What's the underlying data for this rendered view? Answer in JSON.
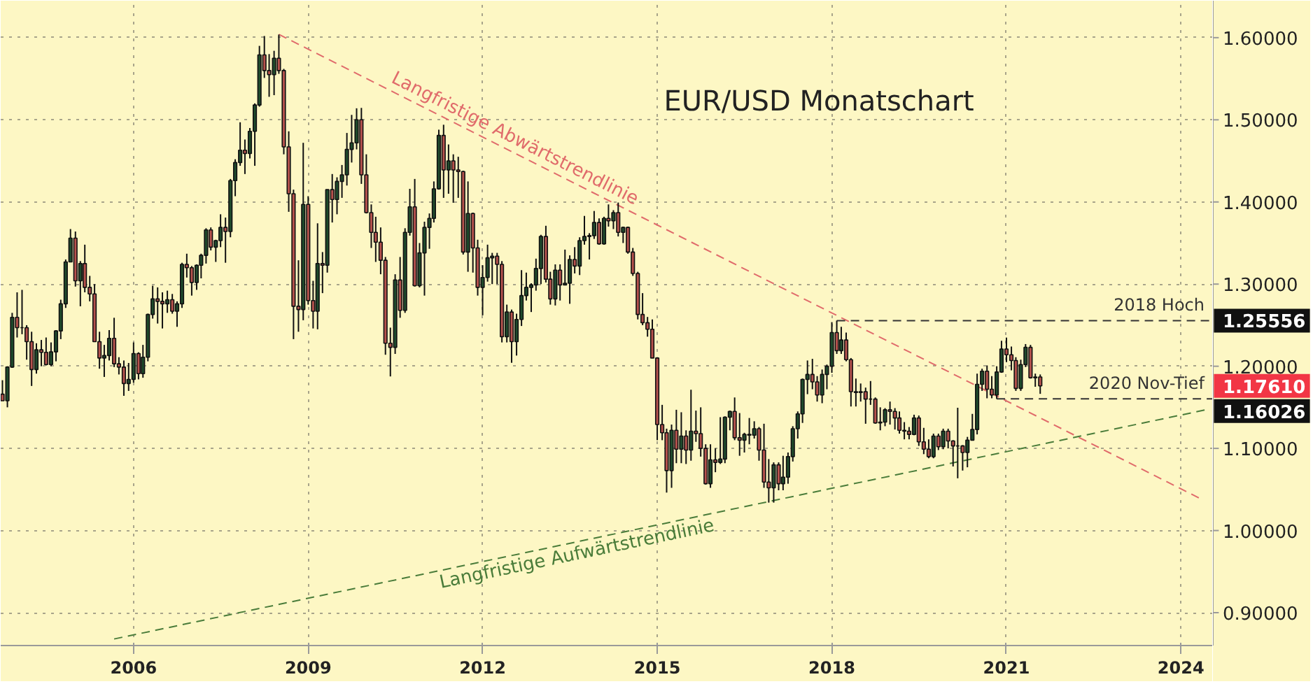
{
  "chart_data": {
    "type": "candlestick",
    "title": "EUR/USD Monatschart",
    "x": [
      "2003-10",
      "2003-11",
      "2003-12",
      "2004-01",
      "2004-02",
      "2004-03",
      "2004-04",
      "2004-05",
      "2004-06",
      "2004-07",
      "2004-08",
      "2004-09",
      "2004-10",
      "2004-11",
      "2004-12",
      "2005-01",
      "2005-02",
      "2005-03",
      "2005-04",
      "2005-05",
      "2005-06",
      "2005-07",
      "2005-08",
      "2005-09",
      "2005-10",
      "2005-11",
      "2005-12",
      "2006-01",
      "2006-02",
      "2006-03",
      "2006-04",
      "2006-05",
      "2006-06",
      "2006-07",
      "2006-08",
      "2006-09",
      "2006-10",
      "2006-11",
      "2006-12",
      "2007-01",
      "2007-02",
      "2007-03",
      "2007-04",
      "2007-05",
      "2007-06",
      "2007-07",
      "2007-08",
      "2007-09",
      "2007-10",
      "2007-11",
      "2007-12",
      "2008-01",
      "2008-02",
      "2008-03",
      "2008-04",
      "2008-05",
      "2008-06",
      "2008-07",
      "2008-08",
      "2008-09",
      "2008-10",
      "2008-11",
      "2008-12",
      "2009-01",
      "2009-02",
      "2009-03",
      "2009-04",
      "2009-05",
      "2009-06",
      "2009-07",
      "2009-08",
      "2009-09",
      "2009-10",
      "2009-11",
      "2009-12",
      "2010-01",
      "2010-02",
      "2010-03",
      "2010-04",
      "2010-05",
      "2010-06",
      "2010-07",
      "2010-08",
      "2010-09",
      "2010-10",
      "2010-11",
      "2010-12",
      "2011-01",
      "2011-02",
      "2011-03",
      "2011-04",
      "2011-05",
      "2011-06",
      "2011-07",
      "2011-08",
      "2011-09",
      "2011-10",
      "2011-11",
      "2011-12",
      "2012-01",
      "2012-02",
      "2012-03",
      "2012-04",
      "2012-05",
      "2012-06",
      "2012-07",
      "2012-08",
      "2012-09",
      "2012-10",
      "2012-11",
      "2012-12",
      "2013-01",
      "2013-02",
      "2013-03",
      "2013-04",
      "2013-05",
      "2013-06",
      "2013-07",
      "2013-08",
      "2013-09",
      "2013-10",
      "2013-11",
      "2013-12",
      "2014-01",
      "2014-02",
      "2014-03",
      "2014-04",
      "2014-05",
      "2014-06",
      "2014-07",
      "2014-08",
      "2014-09",
      "2014-10",
      "2014-11",
      "2014-12",
      "2015-01",
      "2015-02",
      "2015-03",
      "2015-04",
      "2015-05",
      "2015-06",
      "2015-07",
      "2015-08",
      "2015-09",
      "2015-10",
      "2015-11",
      "2015-12",
      "2016-01",
      "2016-02",
      "2016-03",
      "2016-04",
      "2016-05",
      "2016-06",
      "2016-07",
      "2016-08",
      "2016-09",
      "2016-10",
      "2016-11",
      "2016-12",
      "2017-01",
      "2017-02",
      "2017-03",
      "2017-04",
      "2017-05",
      "2017-06",
      "2017-07",
      "2017-08",
      "2017-09",
      "2017-10",
      "2017-11",
      "2017-12",
      "2018-01",
      "2018-02",
      "2018-03",
      "2018-04",
      "2018-05",
      "2018-06",
      "2018-07",
      "2018-08",
      "2018-09",
      "2018-10",
      "2018-11",
      "2018-12",
      "2019-01",
      "2019-02",
      "2019-03",
      "2019-04",
      "2019-05",
      "2019-06",
      "2019-07",
      "2019-08",
      "2019-09",
      "2019-10",
      "2019-11",
      "2019-12",
      "2020-01",
      "2020-02",
      "2020-03",
      "2020-04",
      "2020-05",
      "2020-06",
      "2020-07",
      "2020-08",
      "2020-09",
      "2020-10",
      "2020-11",
      "2020-12",
      "2021-01",
      "2021-02",
      "2021-03",
      "2021-04",
      "2021-05",
      "2021-06",
      "2021-07",
      "2021-08"
    ],
    "ohlc": [
      [
        1.166,
        1.183,
        1.158,
        1.158
      ],
      [
        1.158,
        1.2,
        1.15,
        1.199
      ],
      [
        1.199,
        1.265,
        1.198,
        1.2595
      ],
      [
        1.2595,
        1.29,
        1.235,
        1.247
      ],
      [
        1.247,
        1.293,
        1.239,
        1.247
      ],
      [
        1.247,
        1.25,
        1.208,
        1.23
      ],
      [
        1.23,
        1.242,
        1.176,
        1.196
      ],
      [
        1.196,
        1.228,
        1.191,
        1.22
      ],
      [
        1.22,
        1.232,
        1.2,
        1.217
      ],
      [
        1.217,
        1.235,
        1.201,
        1.202
      ],
      [
        1.202,
        1.229,
        1.2,
        1.2175
      ],
      [
        1.2175,
        1.244,
        1.206,
        1.243
      ],
      [
        1.243,
        1.281,
        1.233,
        1.276
      ],
      [
        1.276,
        1.33,
        1.271,
        1.327
      ],
      [
        1.327,
        1.367,
        1.327,
        1.356
      ],
      [
        1.356,
        1.364,
        1.297,
        1.304
      ],
      [
        1.304,
        1.328,
        1.273,
        1.325
      ],
      [
        1.325,
        1.348,
        1.29,
        1.296
      ],
      [
        1.296,
        1.31,
        1.279,
        1.288
      ],
      [
        1.288,
        1.3,
        1.23,
        1.23
      ],
      [
        1.23,
        1.242,
        1.197,
        1.21
      ],
      [
        1.21,
        1.226,
        1.187,
        1.213
      ],
      [
        1.213,
        1.244,
        1.207,
        1.234
      ],
      [
        1.234,
        1.259,
        1.199,
        1.203
      ],
      [
        1.203,
        1.211,
        1.19,
        1.199
      ],
      [
        1.199,
        1.207,
        1.164,
        1.179
      ],
      [
        1.179,
        1.204,
        1.17,
        1.184
      ],
      [
        1.184,
        1.229,
        1.18,
        1.2155
      ],
      [
        1.2155,
        1.217,
        1.184,
        1.191
      ],
      [
        1.191,
        1.226,
        1.186,
        1.211
      ],
      [
        1.211,
        1.264,
        1.206,
        1.263
      ],
      [
        1.263,
        1.298,
        1.258,
        1.282
      ],
      [
        1.282,
        1.296,
        1.252,
        1.279
      ],
      [
        1.279,
        1.29,
        1.246,
        1.276
      ],
      [
        1.276,
        1.292,
        1.265,
        1.281
      ],
      [
        1.281,
        1.288,
        1.264,
        1.267
      ],
      [
        1.267,
        1.279,
        1.248,
        1.276
      ],
      [
        1.276,
        1.326,
        1.271,
        1.324
      ],
      [
        1.324,
        1.337,
        1.308,
        1.32
      ],
      [
        1.32,
        1.322,
        1.286,
        1.302
      ],
      [
        1.302,
        1.324,
        1.293,
        1.323
      ],
      [
        1.323,
        1.337,
        1.307,
        1.335
      ],
      [
        1.335,
        1.368,
        1.325,
        1.366
      ],
      [
        1.366,
        1.369,
        1.341,
        1.345
      ],
      [
        1.345,
        1.354,
        1.327,
        1.353
      ],
      [
        1.353,
        1.385,
        1.345,
        1.369
      ],
      [
        1.369,
        1.381,
        1.326,
        1.364
      ],
      [
        1.364,
        1.428,
        1.357,
        1.426
      ],
      [
        1.426,
        1.452,
        1.407,
        1.448
      ],
      [
        1.448,
        1.497,
        1.444,
        1.463
      ],
      [
        1.463,
        1.476,
        1.434,
        1.459
      ],
      [
        1.459,
        1.49,
        1.453,
        1.486
      ],
      [
        1.486,
        1.52,
        1.444,
        1.518
      ],
      [
        1.518,
        1.59,
        1.516,
        1.579
      ],
      [
        1.579,
        1.602,
        1.551,
        1.56
      ],
      [
        1.56,
        1.58,
        1.528,
        1.555
      ],
      [
        1.555,
        1.584,
        1.53,
        1.575
      ],
      [
        1.575,
        1.6038,
        1.556,
        1.56
      ],
      [
        1.56,
        1.562,
        1.458,
        1.467
      ],
      [
        1.467,
        1.486,
        1.388,
        1.41
      ],
      [
        1.41,
        1.415,
        1.233,
        1.273
      ],
      [
        1.273,
        1.329,
        1.242,
        1.269
      ],
      [
        1.269,
        1.472,
        1.256,
        1.397
      ],
      [
        1.397,
        1.407,
        1.275,
        1.28
      ],
      [
        1.28,
        1.304,
        1.246,
        1.267
      ],
      [
        1.267,
        1.374,
        1.245,
        1.325
      ],
      [
        1.325,
        1.339,
        1.289,
        1.323
      ],
      [
        1.323,
        1.415,
        1.314,
        1.415
      ],
      [
        1.415,
        1.434,
        1.375,
        1.403
      ],
      [
        1.403,
        1.43,
        1.385,
        1.425
      ],
      [
        1.425,
        1.445,
        1.405,
        1.433
      ],
      [
        1.433,
        1.484,
        1.42,
        1.464
      ],
      [
        1.464,
        1.506,
        1.448,
        1.472
      ],
      [
        1.472,
        1.514,
        1.464,
        1.5
      ],
      [
        1.5,
        1.5145,
        1.422,
        1.433
      ],
      [
        1.433,
        1.458,
        1.386,
        1.387
      ],
      [
        1.387,
        1.397,
        1.344,
        1.363
      ],
      [
        1.363,
        1.382,
        1.327,
        1.351
      ],
      [
        1.351,
        1.369,
        1.312,
        1.329
      ],
      [
        1.329,
        1.333,
        1.214,
        1.228
      ],
      [
        1.228,
        1.247,
        1.1876,
        1.223
      ],
      [
        1.223,
        1.312,
        1.215,
        1.305
      ],
      [
        1.305,
        1.333,
        1.259,
        1.268
      ],
      [
        1.268,
        1.368,
        1.265,
        1.363
      ],
      [
        1.363,
        1.416,
        1.359,
        1.394
      ],
      [
        1.394,
        1.428,
        1.297,
        1.298
      ],
      [
        1.298,
        1.35,
        1.296,
        1.338
      ],
      [
        1.338,
        1.376,
        1.286,
        1.369
      ],
      [
        1.369,
        1.386,
        1.343,
        1.38
      ],
      [
        1.38,
        1.425,
        1.375,
        1.416
      ],
      [
        1.416,
        1.488,
        1.415,
        1.481
      ],
      [
        1.481,
        1.494,
        1.405,
        1.439
      ],
      [
        1.439,
        1.47,
        1.41,
        1.45
      ],
      [
        1.45,
        1.458,
        1.399,
        1.439
      ],
      [
        1.439,
        1.455,
        1.405,
        1.437
      ],
      [
        1.437,
        1.438,
        1.336,
        1.339
      ],
      [
        1.339,
        1.425,
        1.315,
        1.386
      ],
      [
        1.386,
        1.387,
        1.314,
        1.344
      ],
      [
        1.344,
        1.354,
        1.286,
        1.296
      ],
      [
        1.296,
        1.323,
        1.262,
        1.308
      ],
      [
        1.308,
        1.348,
        1.303,
        1.332
      ],
      [
        1.332,
        1.338,
        1.3,
        1.334
      ],
      [
        1.334,
        1.338,
        1.3,
        1.324
      ],
      [
        1.324,
        1.328,
        1.229,
        1.236
      ],
      [
        1.236,
        1.275,
        1.229,
        1.266
      ],
      [
        1.266,
        1.269,
        1.2042,
        1.23
      ],
      [
        1.23,
        1.264,
        1.213,
        1.257
      ],
      [
        1.257,
        1.317,
        1.249,
        1.286
      ],
      [
        1.286,
        1.314,
        1.28,
        1.296
      ],
      [
        1.296,
        1.301,
        1.266,
        1.299
      ],
      [
        1.299,
        1.331,
        1.292,
        1.319
      ],
      [
        1.319,
        1.36,
        1.3,
        1.358
      ],
      [
        1.358,
        1.371,
        1.302,
        1.306
      ],
      [
        1.306,
        1.315,
        1.275,
        1.282
      ],
      [
        1.282,
        1.324,
        1.274,
        1.317
      ],
      [
        1.317,
        1.324,
        1.28,
        1.299
      ],
      [
        1.299,
        1.342,
        1.299,
        1.301
      ],
      [
        1.301,
        1.335,
        1.276,
        1.33
      ],
      [
        1.33,
        1.345,
        1.313,
        1.322
      ],
      [
        1.322,
        1.357,
        1.311,
        1.353
      ],
      [
        1.353,
        1.383,
        1.348,
        1.358
      ],
      [
        1.358,
        1.362,
        1.33,
        1.359
      ],
      [
        1.359,
        1.389,
        1.355,
        1.375
      ],
      [
        1.375,
        1.38,
        1.348,
        1.349
      ],
      [
        1.349,
        1.382,
        1.348,
        1.38
      ],
      [
        1.38,
        1.397,
        1.37,
        1.377
      ],
      [
        1.377,
        1.39,
        1.367,
        1.387
      ],
      [
        1.387,
        1.3993,
        1.358,
        1.363
      ],
      [
        1.363,
        1.37,
        1.35,
        1.369
      ],
      [
        1.369,
        1.37,
        1.337,
        1.339
      ],
      [
        1.339,
        1.344,
        1.31,
        1.313
      ],
      [
        1.313,
        1.315,
        1.257,
        1.263
      ],
      [
        1.263,
        1.289,
        1.25,
        1.253
      ],
      [
        1.253,
        1.26,
        1.236,
        1.245
      ],
      [
        1.245,
        1.257,
        1.21,
        1.21
      ],
      [
        1.21,
        1.211,
        1.11,
        1.129
      ],
      [
        1.129,
        1.153,
        1.11,
        1.119
      ],
      [
        1.119,
        1.124,
        1.0462,
        1.073
      ],
      [
        1.073,
        1.129,
        1.052,
        1.122
      ],
      [
        1.122,
        1.147,
        1.082,
        1.099
      ],
      [
        1.099,
        1.144,
        1.082,
        1.115
      ],
      [
        1.115,
        1.122,
        1.081,
        1.098
      ],
      [
        1.098,
        1.1714,
        1.085,
        1.121
      ],
      [
        1.121,
        1.146,
        1.108,
        1.118
      ],
      [
        1.118,
        1.15,
        1.09,
        1.1
      ],
      [
        1.1,
        1.105,
        1.056,
        1.057
      ],
      [
        1.057,
        1.105,
        1.052,
        1.086
      ],
      [
        1.086,
        1.1,
        1.071,
        1.083
      ],
      [
        1.083,
        1.138,
        1.081,
        1.087
      ],
      [
        1.087,
        1.139,
        1.082,
        1.138
      ],
      [
        1.138,
        1.146,
        1.122,
        1.145
      ],
      [
        1.145,
        1.162,
        1.11,
        1.113
      ],
      [
        1.113,
        1.143,
        1.091,
        1.11
      ],
      [
        1.11,
        1.119,
        1.095,
        1.117
      ],
      [
        1.117,
        1.137,
        1.105,
        1.116
      ],
      [
        1.116,
        1.133,
        1.112,
        1.124
      ],
      [
        1.124,
        1.126,
        1.085,
        1.098
      ],
      [
        1.098,
        1.13,
        1.052,
        1.059
      ],
      [
        1.059,
        1.087,
        1.034,
        1.052
      ],
      [
        1.052,
        1.083,
        1.034,
        1.08
      ],
      [
        1.08,
        1.083,
        1.049,
        1.057
      ],
      [
        1.057,
        1.091,
        1.049,
        1.065
      ],
      [
        1.065,
        1.095,
        1.057,
        1.09
      ],
      [
        1.09,
        1.127,
        1.084,
        1.124
      ],
      [
        1.124,
        1.145,
        1.112,
        1.142
      ],
      [
        1.142,
        1.185,
        1.131,
        1.184
      ],
      [
        1.184,
        1.207,
        1.166,
        1.19
      ],
      [
        1.19,
        1.209,
        1.172,
        1.181
      ],
      [
        1.181,
        1.188,
        1.157,
        1.165
      ],
      [
        1.165,
        1.196,
        1.155,
        1.19
      ],
      [
        1.19,
        1.202,
        1.172,
        1.2
      ],
      [
        1.2,
        1.2537,
        1.192,
        1.241
      ],
      [
        1.241,
        1.25556,
        1.215,
        1.219
      ],
      [
        1.219,
        1.248,
        1.215,
        1.232
      ],
      [
        1.232,
        1.241,
        1.206,
        1.208
      ],
      [
        1.208,
        1.21,
        1.151,
        1.169
      ],
      [
        1.169,
        1.185,
        1.151,
        1.168
      ],
      [
        1.168,
        1.179,
        1.157,
        1.169
      ],
      [
        1.169,
        1.174,
        1.13,
        1.16
      ],
      [
        1.16,
        1.182,
        1.153,
        1.16
      ],
      [
        1.16,
        1.162,
        1.13,
        1.131
      ],
      [
        1.131,
        1.15,
        1.122,
        1.132
      ],
      [
        1.132,
        1.149,
        1.127,
        1.147
      ],
      [
        1.147,
        1.157,
        1.129,
        1.145
      ],
      [
        1.145,
        1.149,
        1.123,
        1.137
      ],
      [
        1.137,
        1.145,
        1.118,
        1.122
      ],
      [
        1.122,
        1.132,
        1.111,
        1.121
      ],
      [
        1.121,
        1.126,
        1.111,
        1.117
      ],
      [
        1.117,
        1.141,
        1.116,
        1.137
      ],
      [
        1.137,
        1.14,
        1.103,
        1.108
      ],
      [
        1.108,
        1.125,
        1.093,
        1.099
      ],
      [
        1.099,
        1.111,
        1.088,
        1.09
      ],
      [
        1.09,
        1.118,
        1.088,
        1.115
      ],
      [
        1.115,
        1.118,
        1.098,
        1.102
      ],
      [
        1.102,
        1.124,
        1.099,
        1.121
      ],
      [
        1.121,
        1.124,
        1.1,
        1.109
      ],
      [
        1.109,
        1.11,
        1.078,
        1.103
      ],
      [
        1.103,
        1.1495,
        1.0636,
        1.103
      ],
      [
        1.103,
        1.104,
        1.073,
        1.095
      ],
      [
        1.095,
        1.114,
        1.077,
        1.11
      ],
      [
        1.11,
        1.142,
        1.11,
        1.123
      ],
      [
        1.123,
        1.191,
        1.117,
        1.178
      ],
      [
        1.178,
        1.197,
        1.17,
        1.194
      ],
      [
        1.194,
        1.201,
        1.161,
        1.172
      ],
      [
        1.172,
        1.188,
        1.161,
        1.165
      ],
      [
        1.165,
        1.2,
        1.16026,
        1.193
      ],
      [
        1.193,
        1.231,
        1.192,
        1.221
      ],
      [
        1.221,
        1.2349,
        1.205,
        1.214
      ],
      [
        1.214,
        1.224,
        1.195,
        1.207
      ],
      [
        1.207,
        1.211,
        1.17,
        1.173
      ],
      [
        1.173,
        1.208,
        1.17,
        1.202
      ],
      [
        1.202,
        1.227,
        1.199,
        1.223
      ],
      [
        1.223,
        1.226,
        1.185,
        1.186
      ],
      [
        1.186,
        1.191,
        1.175,
        1.187
      ],
      [
        1.187,
        1.19,
        1.1664,
        1.1761
      ]
    ],
    "series": [
      {
        "type": "line",
        "name": "Langfristige Abwärtstrendlinie",
        "color": "#e06b6b",
        "line_style": "dashed",
        "x": [
          "2008-07",
          "2024-05"
        ],
        "values": [
          1.604,
          1.039
        ]
      },
      {
        "type": "line",
        "name": "Langfristige Aufwärtstrendlinie",
        "color": "#4a7c3a",
        "line_style": "dashed",
        "x": [
          "2005-09",
          "2024-07"
        ],
        "values": [
          0.868,
          1.148
        ]
      },
      {
        "type": "line",
        "name": "2018 Hoch",
        "color": "#333333",
        "line_style": "dashed",
        "x": [
          "2018-02",
          "2024-07-20"
        ],
        "values": [
          1.25556,
          1.25556
        ],
        "value_labels": [
          null,
          "1.25556"
        ]
      },
      {
        "type": "line",
        "name": "2020 Nov-Tief",
        "color": "#333333",
        "line_style": "dashed",
        "x": [
          "2020-11",
          "2024-07-20"
        ],
        "values": [
          1.16026,
          1.16026
        ],
        "value_labels": [
          null,
          "1.16026"
        ]
      }
    ],
    "annotations": [
      "1.17610"
    ],
    "xlim": [
      "2003-09-20",
      "2024-07-20"
    ],
    "ylim": [
      0.86,
      1.645
    ],
    "xticks": [
      "2006",
      "2009",
      "2012",
      "2015",
      "2018",
      "2021",
      "2024"
    ],
    "yticks": [
      {
        "value": 0.9,
        "label": "0.90000"
      },
      {
        "value": 1.0,
        "label": "1.00000"
      },
      {
        "value": 1.1,
        "label": "1.10000"
      },
      {
        "value": 1.2,
        "label": "1.20000"
      },
      {
        "value": 1.3,
        "label": "1.30000"
      },
      {
        "value": 1.4,
        "label": "1.40000"
      },
      {
        "value": 1.5,
        "label": "1.50000"
      },
      {
        "value": 1.6,
        "label": "1.60000"
      }
    ],
    "grid": true
  }
}
